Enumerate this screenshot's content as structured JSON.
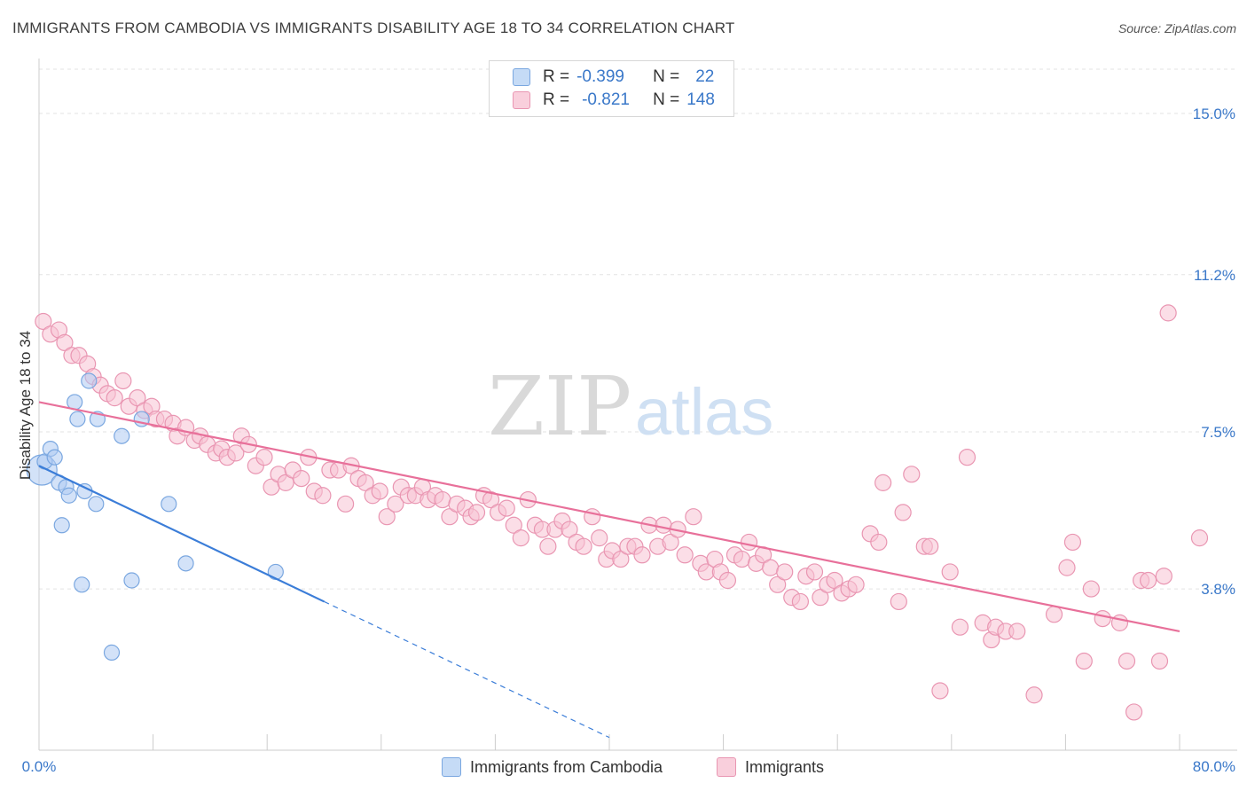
{
  "title": "IMMIGRANTS FROM CAMBODIA VS IMMIGRANTS DISABILITY AGE 18 TO 34 CORRELATION CHART",
  "source": "Source: ZipAtlas.com",
  "watermark": {
    "zip": "ZIP",
    "atlas": "atlas"
  },
  "legend": {
    "r_label": "R =",
    "n_label": "N =",
    "rows": [
      {
        "r": "-0.399",
        "n": "22",
        "color": "#aecbf2",
        "border": "#7aa7e0"
      },
      {
        "r": "-0.821",
        "n": "148",
        "color": "#f7c3d3",
        "border": "#e996b2"
      }
    ]
  },
  "bottom_legend": [
    {
      "label": "Immigrants from Cambodia",
      "color": "#c5dbf6",
      "border": "#7aa7e0"
    },
    {
      "label": "Immigrants",
      "color": "#f9cfdc",
      "border": "#e996b2"
    }
  ],
  "chart_data": {
    "type": "scatter",
    "title": "IMMIGRANTS FROM CAMBODIA VS IMMIGRANTS DISABILITY AGE 18 TO 34 CORRELATION CHART",
    "xlabel": "",
    "ylabel": "Disability Age 18 to 34",
    "xlim": [
      0,
      80
    ],
    "ylim": [
      0,
      16
    ],
    "x_tick_labels": [
      "0.0%",
      "80.0%"
    ],
    "y_ticks": [
      3.8,
      7.5,
      11.2,
      15.0
    ],
    "y_tick_labels": [
      "3.8%",
      "7.5%",
      "11.2%",
      "15.0%"
    ],
    "grid": "horizontal dashed",
    "colors": {
      "blue": "#3b7dd8",
      "pink": "#e8709a"
    },
    "series": [
      {
        "name": "Immigrants from Cambodia",
        "r": -0.399,
        "n": 22,
        "trend": {
          "x0": 0,
          "y0": 6.7,
          "x1": 20.0,
          "y1": 3.5,
          "dashed_to_x": 40.0
        },
        "points": [
          [
            0.2,
            6.6,
            "big"
          ],
          [
            0.4,
            6.8
          ],
          [
            0.8,
            7.1
          ],
          [
            1.1,
            6.9
          ],
          [
            1.4,
            6.3
          ],
          [
            1.6,
            5.3
          ],
          [
            1.9,
            6.2
          ],
          [
            2.1,
            6.0
          ],
          [
            2.5,
            8.2
          ],
          [
            2.7,
            7.8
          ],
          [
            3.2,
            6.1
          ],
          [
            3.0,
            3.9
          ],
          [
            3.5,
            8.7
          ],
          [
            4.0,
            5.8
          ],
          [
            4.1,
            7.8
          ],
          [
            5.1,
            2.3
          ],
          [
            5.8,
            7.4
          ],
          [
            6.5,
            4.0
          ],
          [
            7.2,
            7.8
          ],
          [
            9.1,
            5.8
          ],
          [
            10.3,
            4.4
          ],
          [
            16.6,
            4.2
          ]
        ]
      },
      {
        "name": "Immigrants",
        "r": -0.821,
        "n": 148,
        "trend": {
          "x0": 0,
          "y0": 8.2,
          "x1": 80,
          "y1": 2.8
        },
        "points": [
          [
            0.3,
            10.1
          ],
          [
            0.8,
            9.8
          ],
          [
            1.4,
            9.9
          ],
          [
            1.8,
            9.6
          ],
          [
            2.3,
            9.3
          ],
          [
            2.8,
            9.3
          ],
          [
            3.4,
            9.1
          ],
          [
            3.8,
            8.8
          ],
          [
            4.3,
            8.6
          ],
          [
            4.8,
            8.4
          ],
          [
            5.3,
            8.3
          ],
          [
            5.9,
            8.7
          ],
          [
            6.3,
            8.1
          ],
          [
            6.9,
            8.3
          ],
          [
            7.4,
            8.0
          ],
          [
            7.9,
            8.1
          ],
          [
            8.2,
            7.8
          ],
          [
            8.8,
            7.8
          ],
          [
            9.4,
            7.7
          ],
          [
            9.7,
            7.4
          ],
          [
            10.3,
            7.6
          ],
          [
            10.9,
            7.3
          ],
          [
            11.3,
            7.4
          ],
          [
            11.8,
            7.2
          ],
          [
            12.4,
            7.0
          ],
          [
            12.8,
            7.1
          ],
          [
            13.2,
            6.9
          ],
          [
            13.8,
            7.0
          ],
          [
            14.2,
            7.4
          ],
          [
            14.7,
            7.2
          ],
          [
            15.2,
            6.7
          ],
          [
            15.8,
            6.9
          ],
          [
            16.3,
            6.2
          ],
          [
            16.8,
            6.5
          ],
          [
            17.3,
            6.3
          ],
          [
            17.8,
            6.6
          ],
          [
            18.4,
            6.4
          ],
          [
            18.9,
            6.9
          ],
          [
            19.3,
            6.1
          ],
          [
            19.9,
            6.0
          ],
          [
            20.4,
            6.6
          ],
          [
            21.0,
            6.6
          ],
          [
            21.5,
            5.8
          ],
          [
            21.9,
            6.7
          ],
          [
            22.4,
            6.4
          ],
          [
            22.9,
            6.3
          ],
          [
            23.4,
            6.0
          ],
          [
            23.9,
            6.1
          ],
          [
            24.4,
            5.5
          ],
          [
            25.0,
            5.8
          ],
          [
            25.4,
            6.2
          ],
          [
            25.9,
            6.0
          ],
          [
            26.4,
            6.0
          ],
          [
            26.9,
            6.2
          ],
          [
            27.3,
            5.9
          ],
          [
            27.8,
            6.0
          ],
          [
            28.3,
            5.9
          ],
          [
            28.8,
            5.5
          ],
          [
            29.3,
            5.8
          ],
          [
            29.9,
            5.7
          ],
          [
            30.3,
            5.5
          ],
          [
            30.7,
            5.6
          ],
          [
            31.2,
            6.0
          ],
          [
            31.7,
            5.9
          ],
          [
            32.2,
            5.6
          ],
          [
            32.8,
            5.7
          ],
          [
            33.3,
            5.3
          ],
          [
            33.8,
            5.0
          ],
          [
            34.3,
            5.9
          ],
          [
            34.8,
            5.3
          ],
          [
            35.3,
            5.2
          ],
          [
            35.7,
            4.8
          ],
          [
            36.2,
            5.2
          ],
          [
            36.7,
            5.4
          ],
          [
            37.2,
            5.2
          ],
          [
            37.7,
            4.9
          ],
          [
            38.2,
            4.8
          ],
          [
            38.8,
            5.5
          ],
          [
            39.3,
            5.0
          ],
          [
            39.8,
            4.5
          ],
          [
            40.2,
            4.7
          ],
          [
            40.8,
            4.5
          ],
          [
            41.3,
            4.8
          ],
          [
            41.8,
            4.8
          ],
          [
            42.3,
            4.6
          ],
          [
            42.8,
            5.3
          ],
          [
            43.4,
            4.8
          ],
          [
            43.8,
            5.3
          ],
          [
            44.3,
            4.9
          ],
          [
            44.8,
            5.2
          ],
          [
            45.3,
            4.6
          ],
          [
            45.9,
            5.5
          ],
          [
            46.4,
            4.4
          ],
          [
            46.8,
            4.2
          ],
          [
            47.4,
            4.5
          ],
          [
            47.8,
            4.2
          ],
          [
            48.3,
            4.0
          ],
          [
            48.8,
            4.6
          ],
          [
            49.3,
            4.5
          ],
          [
            49.8,
            4.9
          ],
          [
            50.3,
            4.4
          ],
          [
            50.8,
            4.6
          ],
          [
            51.3,
            4.3
          ],
          [
            51.8,
            3.9
          ],
          [
            52.3,
            4.2
          ],
          [
            52.8,
            3.6
          ],
          [
            53.4,
            3.5
          ],
          [
            53.8,
            4.1
          ],
          [
            54.4,
            4.2
          ],
          [
            54.8,
            3.6
          ],
          [
            55.3,
            3.9
          ],
          [
            55.8,
            4.0
          ],
          [
            56.3,
            3.7
          ],
          [
            56.8,
            3.8
          ],
          [
            57.3,
            3.9
          ],
          [
            58.3,
            5.1
          ],
          [
            59.2,
            6.3
          ],
          [
            58.9,
            4.9
          ],
          [
            60.3,
            3.5
          ],
          [
            60.6,
            5.6
          ],
          [
            61.2,
            6.5
          ],
          [
            62.1,
            4.8
          ],
          [
            62.5,
            4.8
          ],
          [
            63.2,
            1.4
          ],
          [
            63.9,
            4.2
          ],
          [
            64.6,
            2.9
          ],
          [
            65.1,
            6.9
          ],
          [
            66.2,
            3.0
          ],
          [
            66.8,
            2.6
          ],
          [
            67.1,
            2.9
          ],
          [
            67.8,
            2.8
          ],
          [
            68.6,
            2.8
          ],
          [
            69.8,
            1.3
          ],
          [
            71.2,
            3.2
          ],
          [
            72.1,
            4.3
          ],
          [
            72.5,
            4.9
          ],
          [
            73.3,
            2.1
          ],
          [
            73.8,
            3.8
          ],
          [
            74.6,
            3.1
          ],
          [
            75.8,
            3.0
          ],
          [
            76.3,
            2.1
          ],
          [
            76.8,
            0.9
          ],
          [
            77.3,
            4.0
          ],
          [
            77.8,
            4.0
          ],
          [
            78.6,
            2.1
          ],
          [
            78.9,
            4.1
          ],
          [
            79.2,
            10.3
          ],
          [
            81.4,
            5.0
          ]
        ]
      }
    ]
  }
}
